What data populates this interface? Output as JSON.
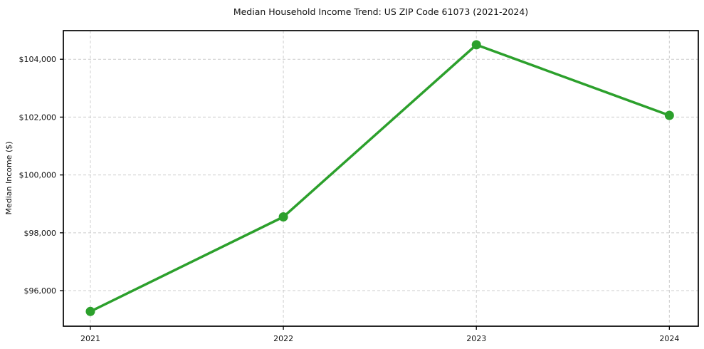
{
  "chart_data": {
    "type": "line",
    "title": "Median Household Income Trend: US ZIP Code 61073 (2021-2024)",
    "xlabel": "",
    "ylabel": "Median Income ($)",
    "x": [
      2021,
      2022,
      2023,
      2024
    ],
    "values": [
      95280,
      98550,
      104500,
      102060
    ],
    "x_tick_labels": [
      "2021",
      "2022",
      "2023",
      "2024"
    ],
    "y_ticks": [
      {
        "value": 96000,
        "label": "$96,000"
      },
      {
        "value": 98000,
        "label": "$98,000"
      },
      {
        "value": 100000,
        "label": "$100,000"
      },
      {
        "value": 102000,
        "label": "$102,000"
      },
      {
        "value": 104000,
        "label": "$104,000"
      }
    ],
    "xlim": [
      2020.86,
      2024.15
    ],
    "ylim": [
      94770,
      104990
    ],
    "grid": true,
    "legend": "none",
    "line_color": "#2ca02c",
    "marker_color": "#2ca02c",
    "grid_color": "#cccccc",
    "axis_color": "#000000",
    "text_color": "#111111"
  }
}
